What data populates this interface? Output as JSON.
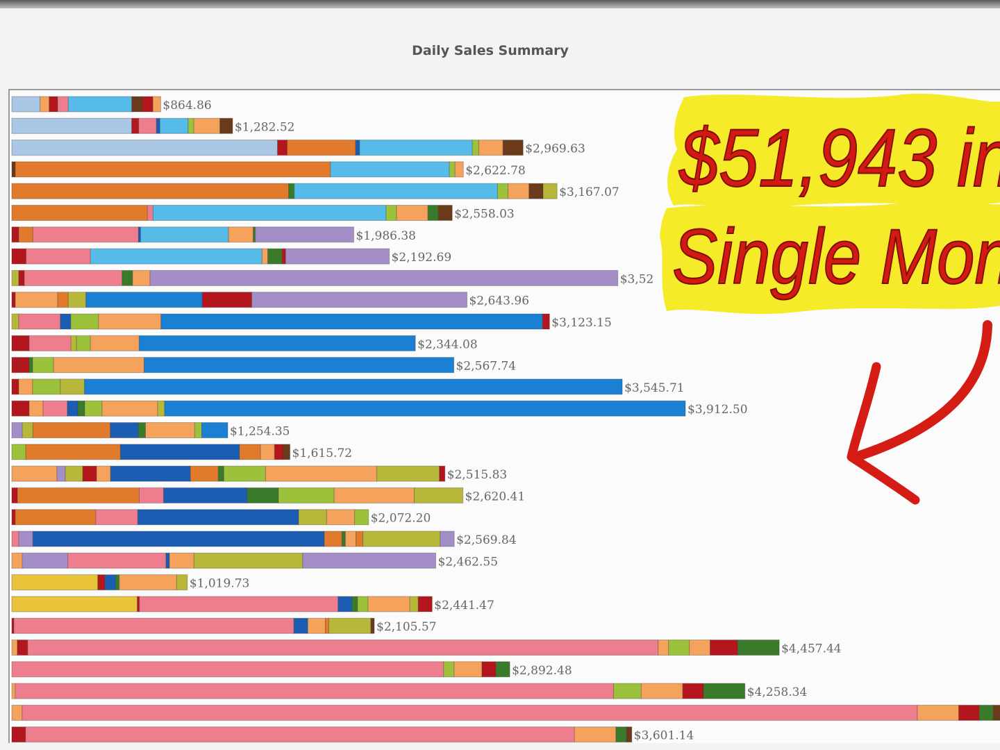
{
  "chart_data": {
    "type": "bar",
    "orientation": "horizontal",
    "stacked": true,
    "title": "Daily Sales Summary",
    "grid": false,
    "legend": "none",
    "xlim": [
      0,
      5800
    ],
    "palette": {
      "lb": "#aac7e6",
      "sky": "#56bbe9",
      "orange": "#e27a2b",
      "pink": "#ee7e8d",
      "purple": "#a38ec8",
      "blue": "#1b7fd4",
      "dblue": "#1c5db4",
      "lgreen": "#9cc23c",
      "peach": "#f4a25c",
      "red": "#b3161c",
      "dgreen": "#3a7b2b",
      "olive": "#b7b73a",
      "yellow": "#e9c33a",
      "brown": "#6b3a1a"
    },
    "rows": [
      {
        "total": 864.86,
        "label": "$864.86",
        "segments": [
          [
            "lb",
            160
          ],
          [
            "peach",
            52
          ],
          [
            "red",
            48
          ],
          [
            "pink",
            60
          ],
          [
            "sky",
            360
          ],
          [
            "brown",
            60
          ],
          [
            "red",
            60
          ],
          [
            "peach",
            44
          ]
        ]
      },
      {
        "total": 1282.52,
        "label": "$1,282.52",
        "segments": [
          [
            "lb",
            680
          ],
          [
            "red",
            40
          ],
          [
            "pink",
            100
          ],
          [
            "dblue",
            20
          ],
          [
            "sky",
            160
          ],
          [
            "lgreen",
            32
          ],
          [
            "peach",
            148
          ],
          [
            "brown",
            72
          ]
        ]
      },
      {
        "total": 2969.63,
        "label": "$2,969.63",
        "segments": [
          [
            "lb",
            1320
          ],
          [
            "red",
            48
          ],
          [
            "orange",
            340
          ],
          [
            "dblue",
            20
          ],
          [
            "sky",
            560
          ],
          [
            "lgreen",
            32
          ],
          [
            "peach",
            120
          ],
          [
            "brown",
            100
          ]
        ]
      },
      {
        "total": 2622.78,
        "label": "$2,622.78",
        "segments": [
          [
            "brown",
            20
          ],
          [
            "orange",
            1800
          ],
          [
            "sky",
            680
          ],
          [
            "lgreen",
            32
          ],
          [
            "peach",
            48
          ]
        ]
      },
      {
        "total": 3167.07,
        "label": "$3,167.07",
        "segments": [
          [
            "orange",
            1580
          ],
          [
            "dgreen",
            32
          ],
          [
            "sky",
            1160
          ],
          [
            "lgreen",
            60
          ],
          [
            "peach",
            120
          ],
          [
            "brown",
            80
          ],
          [
            "olive",
            80
          ]
        ]
      },
      {
        "total": 2558.03,
        "label": "$2,558.03",
        "segments": [
          [
            "orange",
            780
          ],
          [
            "pink",
            32
          ],
          [
            "sky",
            1340
          ],
          [
            "lgreen",
            60
          ],
          [
            "peach",
            180
          ],
          [
            "dgreen",
            60
          ],
          [
            "brown",
            80
          ]
        ]
      },
      {
        "total": 1986.38,
        "label": "$1,986.38",
        "segments": [
          [
            "red",
            40
          ],
          [
            "orange",
            80
          ],
          [
            "pink",
            600
          ],
          [
            "dblue",
            12
          ],
          [
            "sky",
            500
          ],
          [
            "peach",
            140
          ],
          [
            "dgreen",
            12
          ],
          [
            "purple",
            560
          ]
        ]
      },
      {
        "total": 2192.69,
        "label": "$2,192.69",
        "segments": [
          [
            "red",
            80
          ],
          [
            "pink",
            360
          ],
          [
            "sky",
            960
          ],
          [
            "peach",
            32
          ],
          [
            "dgreen",
            80
          ],
          [
            "red",
            20
          ],
          [
            "purple",
            580
          ]
        ]
      },
      {
        "total": 3520,
        "label": "$3,52",
        "segments": [
          [
            "olive",
            40
          ],
          [
            "red",
            32
          ],
          [
            "pink",
            560
          ],
          [
            "dgreen",
            60
          ],
          [
            "peach",
            100
          ],
          [
            "purple",
            2680
          ]
        ]
      },
      {
        "total": 2643.96,
        "label": "$2,643.96",
        "segments": [
          [
            "red",
            20
          ],
          [
            "peach",
            240
          ],
          [
            "orange",
            60
          ],
          [
            "olive",
            100
          ],
          [
            "blue",
            660
          ],
          [
            "red",
            280
          ],
          [
            "purple",
            1220
          ]
        ]
      },
      {
        "total": 3123.15,
        "label": "$3,123.15",
        "segments": [
          [
            "olive",
            40
          ],
          [
            "pink",
            240
          ],
          [
            "dblue",
            60
          ],
          [
            "lgreen",
            160
          ],
          [
            "peach",
            360
          ],
          [
            "blue",
            2200
          ],
          [
            "red",
            40
          ]
        ]
      },
      {
        "total": 2344.08,
        "label": "$2,344.08",
        "segments": [
          [
            "red",
            100
          ],
          [
            "pink",
            240
          ],
          [
            "olive",
            32
          ],
          [
            "lgreen",
            80
          ],
          [
            "peach",
            280
          ],
          [
            "blue",
            1588
          ]
        ]
      },
      {
        "total": 2567.74,
        "label": "$2,567.74",
        "segments": [
          [
            "red",
            40
          ],
          [
            "red",
            60
          ],
          [
            "dgreen",
            20
          ],
          [
            "lgreen",
            120
          ],
          [
            "peach",
            520
          ],
          [
            "blue",
            1780
          ]
        ]
      },
      {
        "total": 3545.71,
        "label": "$3,545.71",
        "segments": [
          [
            "red",
            40
          ],
          [
            "peach",
            80
          ],
          [
            "lgreen",
            160
          ],
          [
            "olive",
            140
          ],
          [
            "blue",
            3108
          ]
        ]
      },
      {
        "total": 3912.5,
        "label": "$3,912.50",
        "segments": [
          [
            "red",
            100
          ],
          [
            "peach",
            80
          ],
          [
            "pink",
            140
          ],
          [
            "dblue",
            60
          ],
          [
            "dgreen",
            40
          ],
          [
            "lgreen",
            100
          ],
          [
            "peach",
            320
          ],
          [
            "olive",
            40
          ],
          [
            "blue",
            3000
          ]
        ]
      },
      {
        "total": 1254.35,
        "label": "$1,254.35",
        "segments": [
          [
            "purple",
            60
          ],
          [
            "olive",
            60
          ],
          [
            "orange",
            440
          ],
          [
            "dblue",
            160
          ],
          [
            "dgreen",
            40
          ],
          [
            "peach",
            280
          ],
          [
            "lgreen",
            40
          ],
          [
            "blue",
            148
          ]
        ]
      },
      {
        "total": 1615.72,
        "label": "$1,615.72",
        "segments": [
          [
            "lgreen",
            80
          ],
          [
            "orange",
            540
          ],
          [
            "dblue",
            680
          ],
          [
            "orange",
            120
          ],
          [
            "peach",
            80
          ],
          [
            "red",
            48
          ],
          [
            "brown",
            40
          ]
        ]
      },
      {
        "total": 2515.83,
        "label": "$2,515.83",
        "segments": [
          [
            "peach",
            260
          ],
          [
            "purple",
            48
          ],
          [
            "olive",
            100
          ],
          [
            "red",
            80
          ],
          [
            "peach",
            80
          ],
          [
            "dblue",
            460
          ],
          [
            "orange",
            160
          ],
          [
            "dgreen",
            32
          ],
          [
            "lgreen",
            240
          ],
          [
            "peach",
            640
          ],
          [
            "olive",
            360
          ],
          [
            "red",
            32
          ]
        ]
      },
      {
        "total": 2620.41,
        "label": "$2,620.41",
        "segments": [
          [
            "red",
            32
          ],
          [
            "orange",
            700
          ],
          [
            "pink",
            140
          ],
          [
            "dblue",
            480
          ],
          [
            "dgreen",
            180
          ],
          [
            "lgreen",
            320
          ],
          [
            "peach",
            460
          ],
          [
            "olive",
            280
          ]
        ]
      },
      {
        "total": 2072.2,
        "label": "$2,072.20",
        "segments": [
          [
            "red",
            20
          ],
          [
            "orange",
            460
          ],
          [
            "pink",
            240
          ],
          [
            "dblue",
            920
          ],
          [
            "olive",
            160
          ],
          [
            "peach",
            160
          ],
          [
            "lgreen",
            80
          ]
        ]
      },
      {
        "total": 2569.84,
        "label": "$2,569.84",
        "segments": [
          [
            "pink",
            40
          ],
          [
            "purple",
            80
          ],
          [
            "dblue",
            1660
          ],
          [
            "orange",
            100
          ],
          [
            "dgreen",
            20
          ],
          [
            "peach",
            60
          ],
          [
            "orange",
            40
          ],
          [
            "olive",
            440
          ],
          [
            "purple",
            80
          ]
        ]
      },
      {
        "total": 2462.55,
        "label": "$2,462.55",
        "segments": [
          [
            "peach",
            60
          ],
          [
            "purple",
            260
          ],
          [
            "pink",
            560
          ],
          [
            "dblue",
            20
          ],
          [
            "peach",
            140
          ],
          [
            "olive",
            620
          ],
          [
            "purple",
            760
          ]
        ]
      },
      {
        "total": 1019.73,
        "label": "$1,019.73",
        "segments": [
          [
            "yellow",
            480
          ],
          [
            "red",
            40
          ],
          [
            "dblue",
            60
          ],
          [
            "dgreen",
            20
          ],
          [
            "peach",
            320
          ],
          [
            "olive",
            60
          ]
        ]
      },
      {
        "total": 2441.47,
        "label": "$2,441.47",
        "segments": [
          [
            "yellow",
            720
          ],
          [
            "red",
            12
          ],
          [
            "pink",
            1140
          ],
          [
            "dblue",
            80
          ],
          [
            "dgreen",
            32
          ],
          [
            "lgreen",
            60
          ],
          [
            "peach",
            240
          ],
          [
            "olive",
            48
          ],
          [
            "red",
            80
          ]
        ]
      },
      {
        "total": 2105.57,
        "label": "$2,105.57",
        "segments": [
          [
            "red",
            12
          ],
          [
            "pink",
            1600
          ],
          [
            "dblue",
            80
          ],
          [
            "peach",
            100
          ],
          [
            "orange",
            20
          ],
          [
            "olive",
            240
          ],
          [
            "brown",
            20
          ]
        ]
      },
      {
        "total": 4457.44,
        "label": "$4,457.44",
        "segments": [
          [
            "peach",
            32
          ],
          [
            "red",
            60
          ],
          [
            "pink",
            3648
          ],
          [
            "peach",
            60
          ],
          [
            "lgreen",
            120
          ],
          [
            "peach",
            120
          ],
          [
            "red",
            160
          ],
          [
            "dgreen",
            240
          ]
        ]
      },
      {
        "total": 2892.48,
        "label": "$2,892.48",
        "segments": [
          [
            "pink",
            2480
          ],
          [
            "lgreen",
            60
          ],
          [
            "peach",
            160
          ],
          [
            "red",
            80
          ],
          [
            "dgreen",
            80
          ]
        ]
      },
      {
        "total": 4258.34,
        "label": "$4,258.34",
        "segments": [
          [
            "peach",
            20
          ],
          [
            "pink",
            3460
          ],
          [
            "lgreen",
            160
          ],
          [
            "peach",
            240
          ],
          [
            "red",
            120
          ],
          [
            "dgreen",
            240
          ]
        ]
      },
      {
        "total": 5800,
        "label": "",
        "segments": [
          [
            "peach",
            60
          ],
          [
            "pink",
            5200
          ],
          [
            "peach",
            240
          ],
          [
            "red",
            120
          ],
          [
            "dgreen",
            80
          ],
          [
            "brown",
            100
          ]
        ]
      },
      {
        "total": 3601.14,
        "label": "$3,601.14",
        "segments": [
          [
            "red",
            80
          ],
          [
            "pink",
            3180
          ],
          [
            "peach",
            240
          ],
          [
            "dgreen",
            60
          ],
          [
            "brown",
            32
          ]
        ]
      }
    ]
  },
  "overlay": {
    "line1": "$51,943 in",
    "line2": "Single Mon",
    "highlight_color": "#f6ea1e",
    "text_color": "#d21a12"
  }
}
